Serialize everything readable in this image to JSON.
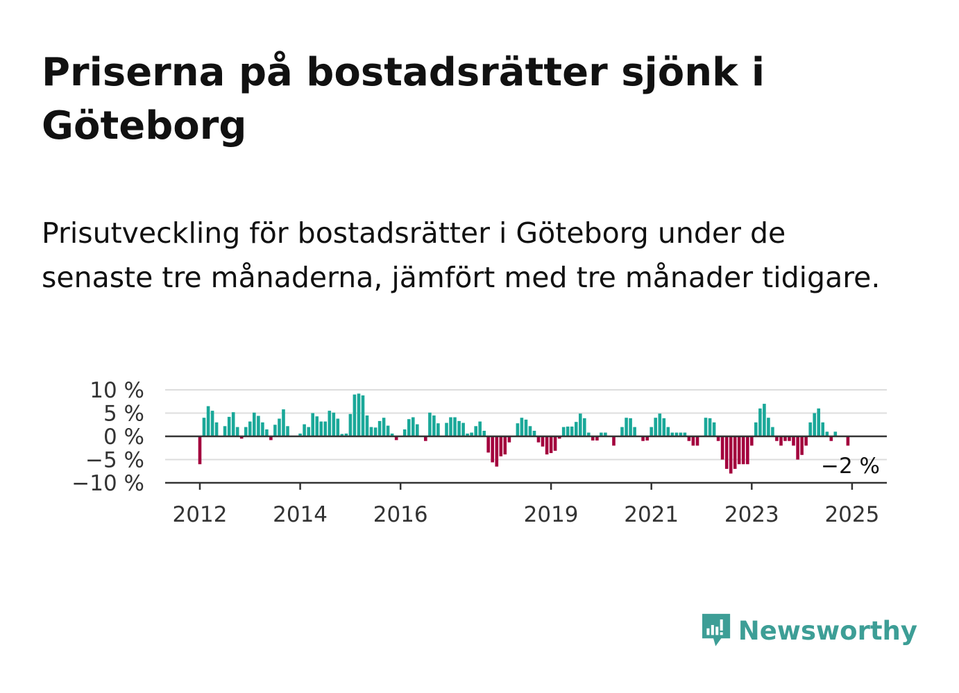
{
  "title": "Priserna på bostadsrätter sjönk i Göteborg",
  "subtitle": "Prisutveckling för bostadsrätter i Göteborg under de senaste tre månaderna, jämfört med tre månader tidigare.",
  "logo": {
    "text": "Newsworthy",
    "icon": "newsworthy-chart-icon",
    "color": "#3d9e96"
  },
  "colors": {
    "positive": "#1aa899",
    "negative": "#a3003d",
    "grid": "#dddddd",
    "axis": "#333333"
  },
  "chart_data": {
    "type": "bar",
    "title": "",
    "xlabel": "",
    "ylabel": "",
    "ylim": [
      -10,
      10
    ],
    "y_ticks": [
      {
        "value": 10,
        "label": "10 %"
      },
      {
        "value": 5,
        "label": "5 %"
      },
      {
        "value": 0,
        "label": "0 %"
      },
      {
        "value": -5,
        "label": "−5 %"
      },
      {
        "value": -10,
        "label": "−10 %"
      }
    ],
    "x_ticks": [
      {
        "year": 2012,
        "label": "2012"
      },
      {
        "year": 2014,
        "label": "2014"
      },
      {
        "year": 2016,
        "label": "2016"
      },
      {
        "year": 2019,
        "label": "2019"
      },
      {
        "year": 2021,
        "label": "2021"
      },
      {
        "year": 2023,
        "label": "2023"
      },
      {
        "year": 2025,
        "label": "2025"
      }
    ],
    "grid": true,
    "legend": "none",
    "start": "2012-01",
    "end_label": "−2 %",
    "values": [
      -6,
      4,
      6.5,
      5.5,
      3,
      0,
      2.2,
      4.2,
      5.2,
      2,
      -0.5,
      2,
      3.2,
      5.1,
      4.4,
      3,
      1.5,
      -0.8,
      2.5,
      3.8,
      5.8,
      2.2,
      0,
      0,
      0.6,
      2.6,
      2,
      5,
      4.3,
      3.2,
      3.2,
      5.5,
      5.1,
      3.8,
      0.5,
      0.6,
      4.8,
      9,
      9.2,
      8.8,
      4.5,
      2,
      1.9,
      3.3,
      4,
      2.3,
      0.6,
      -0.8,
      0,
      1.5,
      3.7,
      4.1,
      2.6,
      0,
      -1,
      5.1,
      4.5,
      2.8,
      0,
      2.9,
      4.1,
      4.1,
      3.3,
      2.9,
      0.6,
      0.8,
      2.2,
      3.2,
      1.2,
      -3.5,
      -5.6,
      -6.5,
      -4.3,
      -3.9,
      -1.3,
      0,
      2.8,
      4,
      3.6,
      2.2,
      1.2,
      -1.3,
      -2.2,
      -3.9,
      -3.6,
      -3.1,
      -0.5,
      2,
      2.1,
      2.1,
      3.1,
      4.9,
      3.9,
      0.8,
      -0.9,
      -0.9,
      0.8,
      0.8,
      0,
      -2,
      0,
      2,
      4,
      3.9,
      2,
      0,
      -1,
      -0.9,
      2,
      4,
      4.9,
      3.9,
      2,
      0.8,
      0.8,
      0.8,
      0.8,
      -1,
      -2,
      -2,
      0,
      4,
      3.9,
      3,
      -1,
      -5,
      -7,
      -8,
      -7,
      -6,
      -6,
      -6,
      -2,
      3,
      6,
      7,
      4,
      2,
      -1,
      -2,
      -1,
      -1,
      -2,
      -5,
      -4,
      -2,
      3,
      5,
      6,
      3,
      1,
      -1,
      1,
      0,
      0,
      -2
    ]
  }
}
